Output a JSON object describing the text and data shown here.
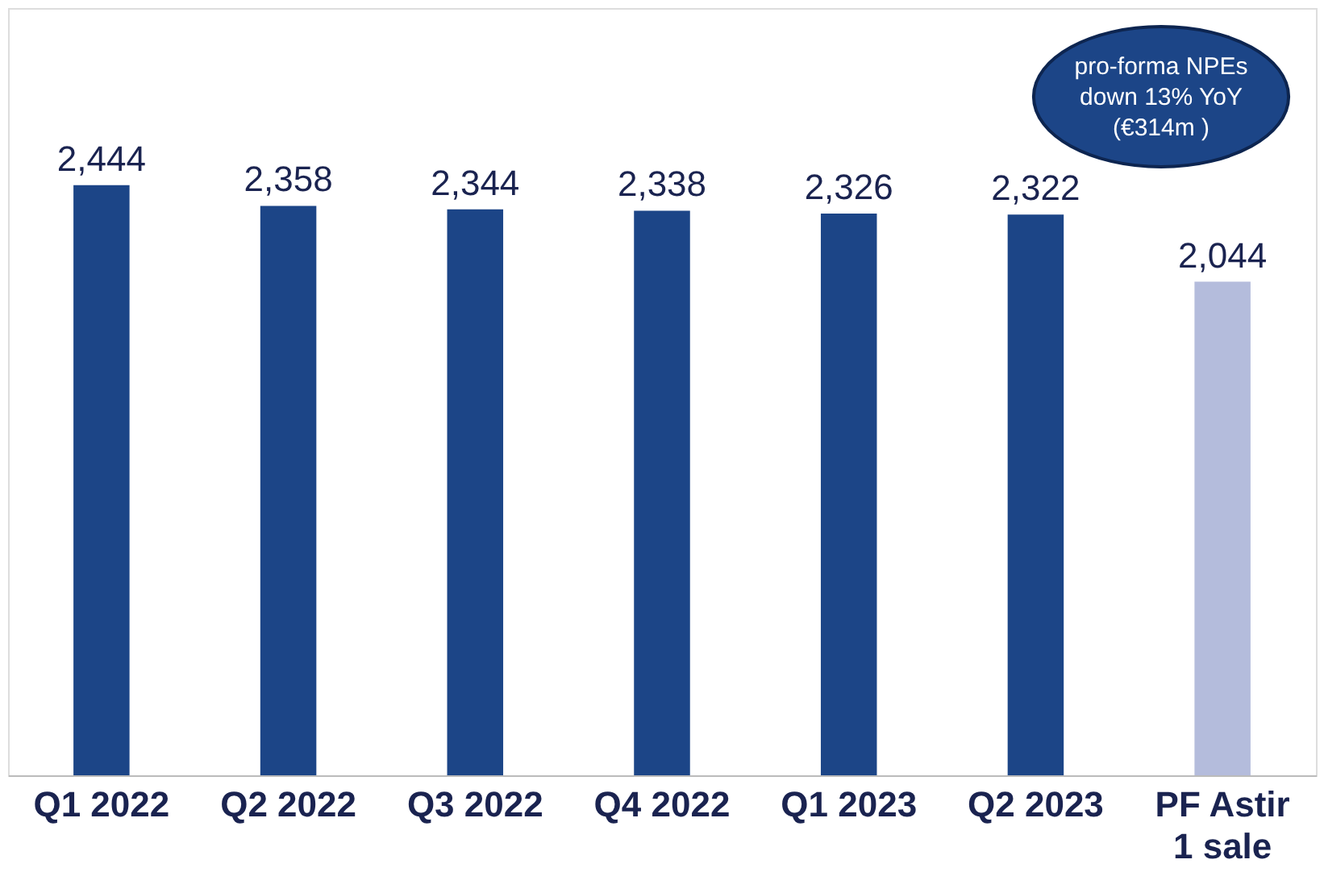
{
  "chart_data": {
    "type": "bar",
    "categories": [
      "Q1 2022",
      "Q2 2022",
      "Q3 2022",
      "Q4 2022",
      "Q1 2023",
      "Q2 2023",
      "PF Astir\n1 sale"
    ],
    "values": [
      2444,
      2358,
      2344,
      2338,
      2326,
      2322,
      2044
    ],
    "value_labels": [
      "2,444",
      "2,358",
      "2,344",
      "2,338",
      "2,326",
      "2,322",
      "2,044"
    ],
    "colors": [
      "#1c4587",
      "#1c4587",
      "#1c4587",
      "#1c4587",
      "#1c4587",
      "#1c4587",
      "#b4bcdc"
    ],
    "annotations": [
      "pro-forma NPEs\ndown 13% YoY\n(€314m )"
    ]
  }
}
